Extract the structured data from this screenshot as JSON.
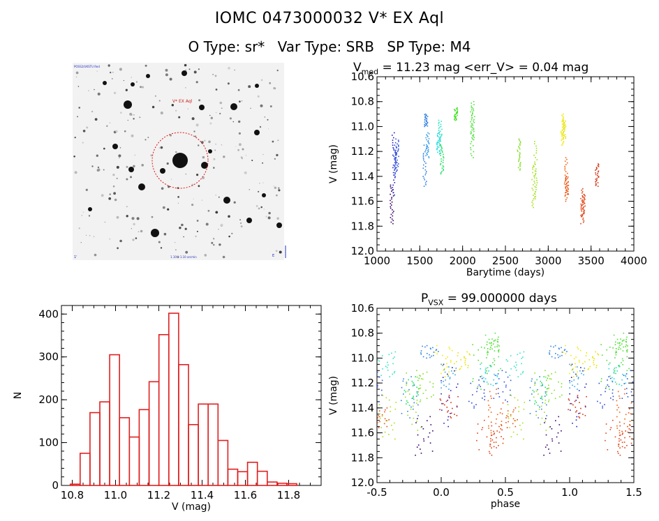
{
  "header": {
    "title": "IOMC 0473000032   V* EX Aql",
    "otype": "O Type: sr*",
    "vartype": "Var Type: SRB",
    "sptype": "SP Type: M4"
  },
  "thumbnail": {
    "star_label": "V* EX Aql",
    "corner_top_left": "POSS2/UKSTU Red",
    "corner_bottom_left": "1'",
    "corner_bottom_center": "1.10 x 1.10 arcmin",
    "corner_bottom_right": "E"
  },
  "panel_lightcurve": {
    "title_main": "V",
    "title_sub": "med",
    "title_rest": "= 11.23 mag <err_V> = 0.04 mag"
  },
  "panel_phase": {
    "title_main": "P",
    "title_sub": "VSX",
    "title_rest": "= 99.000000 days"
  },
  "chart_data": [
    {
      "type": "scatter",
      "id": "lightcurve",
      "xlabel": "Barytime (days)",
      "ylabel": "V (mag)",
      "xlim": [
        1000,
        4000
      ],
      "ylim": [
        12.0,
        10.6
      ],
      "y_inverted": true,
      "xticks": [
        1000,
        1500,
        2000,
        2500,
        3000,
        3500,
        4000
      ],
      "yticks": [
        "10.6",
        "10.8",
        "11.0",
        "11.2",
        "11.4",
        "11.6",
        "11.8",
        "12.0"
      ],
      "segments": [
        {
          "t": 1175,
          "v": [
            11.47,
            11.78
          ],
          "color": "#330066"
        },
        {
          "t": 1195,
          "v": [
            11.05,
            11.55
          ],
          "color": "#2020c0"
        },
        {
          "t": 1215,
          "v": [
            11.15,
            11.4
          ],
          "color": "#2a4ad8"
        },
        {
          "t": 1235,
          "v": [
            11.1,
            11.35
          ],
          "color": "#3050e0"
        },
        {
          "t": 1560,
          "v": [
            11.15,
            11.48
          ],
          "color": "#2f7fe0"
        },
        {
          "t": 1575,
          "v": [
            10.9,
            11.0
          ],
          "color": "#2f7fe0"
        },
        {
          "t": 1590,
          "v": [
            11.05,
            11.25
          ],
          "color": "#3aa0e8"
        },
        {
          "t": 1720,
          "v": [
            11.05,
            11.22
          ],
          "color": "#20d8e8"
        },
        {
          "t": 1740,
          "v": [
            10.95,
            11.15
          ],
          "color": "#30e0c8"
        },
        {
          "t": 1760,
          "v": [
            11.15,
            11.38
          ],
          "color": "#20e060"
        },
        {
          "t": 1920,
          "v": [
            10.85,
            10.95
          ],
          "color": "#40e020"
        },
        {
          "t": 2110,
          "v": [
            10.85,
            11.25
          ],
          "color": "#48e030"
        },
        {
          "t": 2120,
          "v": [
            10.8,
            11.1
          ],
          "color": "#50e040"
        },
        {
          "t": 2660,
          "v": [
            11.1,
            11.35
          ],
          "color": "#7fe020"
        },
        {
          "t": 2830,
          "v": [
            11.3,
            11.65
          ],
          "color": "#a8e010"
        },
        {
          "t": 2850,
          "v": [
            11.12,
            11.58
          ],
          "color": "#98e018"
        },
        {
          "t": 3170,
          "v": [
            10.9,
            11.15
          ],
          "color": "#f0e800"
        },
        {
          "t": 3185,
          "v": [
            10.95,
            11.1
          ],
          "color": "#e8e000"
        },
        {
          "t": 3210,
          "v": [
            11.25,
            11.6
          ],
          "color": "#f06010"
        },
        {
          "t": 3220,
          "v": [
            11.4,
            11.55
          ],
          "color": "#e85010"
        },
        {
          "t": 3400,
          "v": [
            11.5,
            11.78
          ],
          "color": "#e04010"
        },
        {
          "t": 3410,
          "v": [
            11.55,
            11.72
          ],
          "color": "#e04010"
        },
        {
          "t": 3570,
          "v": [
            11.3,
            11.48
          ],
          "color": "#d03010"
        }
      ]
    },
    {
      "type": "scatter",
      "id": "phase",
      "xlabel": "phase",
      "ylabel": "V (mag)",
      "xlim": [
        -0.5,
        1.5
      ],
      "ylim": [
        12.0,
        10.6
      ],
      "y_inverted": true,
      "xticks": [
        "-0.5",
        "0.0",
        "0.5",
        "1.0",
        "1.5"
      ],
      "yticks": [
        "10.6",
        "10.8",
        "11.0",
        "11.2",
        "11.4",
        "11.6",
        "11.8",
        "12.0"
      ],
      "note": "phase = fold of lightcurve on period 99.0 d, plotted twice (phase and phase+1)"
    },
    {
      "type": "bar",
      "id": "histogram",
      "xlabel": "V (mag)",
      "ylabel": "N",
      "xlim": [
        10.75,
        11.95
      ],
      "ylim": [
        0,
        420
      ],
      "xticks": [
        "10.8",
        "11.0",
        "11.2",
        "11.4",
        "11.6",
        "11.8"
      ],
      "yticks": [
        "0",
        "100",
        "200",
        "300",
        "400"
      ],
      "bin_width": 0.0455,
      "bin_edges_start": 10.791,
      "counts": [
        3,
        75,
        170,
        195,
        305,
        158,
        113,
        177,
        242,
        352,
        402,
        282,
        142,
        190,
        190,
        105,
        38,
        32,
        54,
        33,
        8,
        5,
        4
      ]
    }
  ]
}
